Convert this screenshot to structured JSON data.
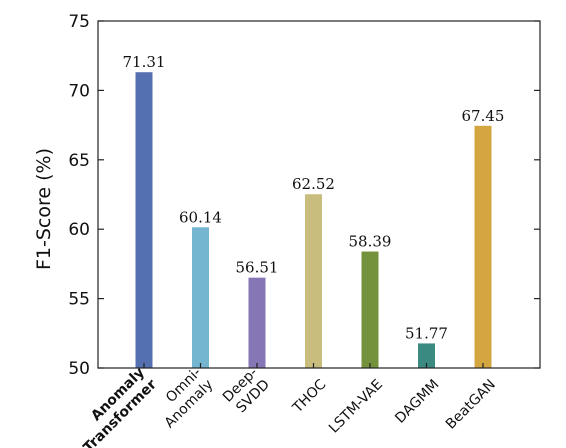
{
  "chart_data": {
    "type": "bar",
    "ylabel": "F1-Score (%)",
    "xlabel": "",
    "ylim": [
      50,
      75
    ],
    "yticks": [
      50,
      55,
      60,
      65,
      70,
      75
    ],
    "grid": false,
    "categories": [
      {
        "lines": [
          "Anomaly",
          "Transformer"
        ],
        "bold": true
      },
      {
        "lines": [
          "Omni-",
          "Anomaly"
        ],
        "bold": false
      },
      {
        "lines": [
          "Deep-",
          "SVDD"
        ],
        "bold": false
      },
      {
        "lines": [
          "THOC"
        ],
        "bold": false
      },
      {
        "lines": [
          "LSTM-VAE"
        ],
        "bold": false
      },
      {
        "lines": [
          "DAGMM"
        ],
        "bold": false
      },
      {
        "lines": [
          "BeatGAN"
        ],
        "bold": false
      }
    ],
    "values": [
      71.31,
      60.14,
      56.51,
      62.52,
      58.39,
      51.77,
      67.45
    ],
    "value_labels": [
      "71.31",
      "60.14",
      "56.51",
      "62.52",
      "58.39",
      "51.77",
      "67.45"
    ],
    "colors": [
      "#5470b0",
      "#74b6cf",
      "#8676b5",
      "#c9bd7d",
      "#74913b",
      "#3a8a82",
      "#d4a640"
    ]
  }
}
